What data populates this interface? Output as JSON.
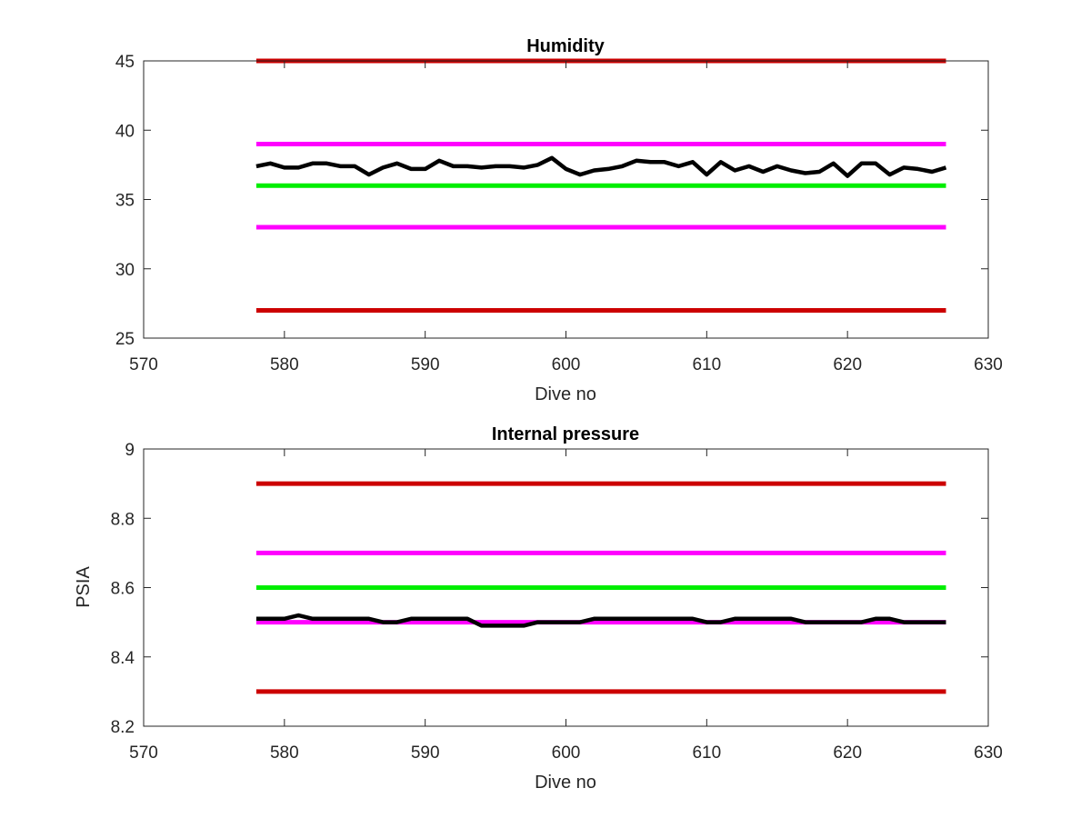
{
  "figure": {
    "background": "#ffffff"
  },
  "chart_data": [
    {
      "type": "line",
      "title": "Humidity",
      "xlabel": "Dive no",
      "ylabel": "",
      "xlim": [
        570,
        630
      ],
      "ylim": [
        25,
        45
      ],
      "xticks": [
        "570",
        "580",
        "590",
        "600",
        "610",
        "620",
        "630"
      ],
      "yticks": [
        "25",
        "30",
        "35",
        "40",
        "45"
      ],
      "grid": false,
      "series": [
        {
          "color": "#cc0000",
          "x": [
            578,
            627
          ],
          "values": [
            45,
            45
          ]
        },
        {
          "color": "#ff00ff",
          "x": [
            578,
            627
          ],
          "values": [
            39,
            39
          ]
        },
        {
          "color": "#00ee00",
          "x": [
            578,
            627
          ],
          "values": [
            36,
            36
          ]
        },
        {
          "color": "#ff00ff",
          "x": [
            578,
            627
          ],
          "values": [
            33,
            33
          ]
        },
        {
          "color": "#cc0000",
          "x": [
            578,
            627
          ],
          "values": [
            27,
            27
          ]
        },
        {
          "color": "#000000",
          "x": [
            578,
            579,
            580,
            581,
            582,
            583,
            584,
            585,
            586,
            587,
            588,
            589,
            590,
            591,
            592,
            593,
            594,
            595,
            596,
            597,
            598,
            599,
            600,
            601,
            602,
            603,
            604,
            605,
            606,
            607,
            608,
            609,
            610,
            611,
            612,
            613,
            614,
            615,
            616,
            617,
            618,
            619,
            620,
            621,
            622,
            623,
            624,
            625,
            626,
            627
          ],
          "values": [
            37.4,
            37.6,
            37.3,
            37.3,
            37.6,
            37.6,
            37.4,
            37.4,
            36.8,
            37.3,
            37.6,
            37.2,
            37.2,
            37.8,
            37.4,
            37.4,
            37.3,
            37.4,
            37.4,
            37.3,
            37.5,
            38.0,
            37.2,
            36.8,
            37.1,
            37.2,
            37.4,
            37.8,
            37.7,
            37.7,
            37.4,
            37.7,
            36.8,
            37.7,
            37.1,
            37.4,
            37.0,
            37.4,
            37.1,
            36.9,
            37.0,
            37.6,
            36.7,
            37.6,
            37.6,
            36.8,
            37.3,
            37.2,
            37.0,
            37.3
          ]
        }
      ]
    },
    {
      "type": "line",
      "title": "Internal pressure",
      "xlabel": "Dive no",
      "ylabel": "PSIA",
      "xlim": [
        570,
        630
      ],
      "ylim": [
        8.2,
        9.0
      ],
      "xticks": [
        "570",
        "580",
        "590",
        "600",
        "610",
        "620",
        "630"
      ],
      "yticks": [
        "8.2",
        "8.4",
        "8.6",
        "8.8",
        "9"
      ],
      "grid": false,
      "series": [
        {
          "color": "#cc0000",
          "x": [
            578,
            627
          ],
          "values": [
            8.9,
            8.9
          ]
        },
        {
          "color": "#ff00ff",
          "x": [
            578,
            627
          ],
          "values": [
            8.7,
            8.7
          ]
        },
        {
          "color": "#00ee00",
          "x": [
            578,
            627
          ],
          "values": [
            8.6,
            8.6
          ]
        },
        {
          "color": "#ff00ff",
          "x": [
            578,
            627
          ],
          "values": [
            8.5,
            8.5
          ]
        },
        {
          "color": "#cc0000",
          "x": [
            578,
            627
          ],
          "values": [
            8.3,
            8.3
          ]
        },
        {
          "color": "#000000",
          "x": [
            578,
            579,
            580,
            581,
            582,
            583,
            584,
            585,
            586,
            587,
            588,
            589,
            590,
            591,
            592,
            593,
            594,
            595,
            596,
            597,
            598,
            599,
            600,
            601,
            602,
            603,
            604,
            605,
            606,
            607,
            608,
            609,
            610,
            611,
            612,
            613,
            614,
            615,
            616,
            617,
            618,
            619,
            620,
            621,
            622,
            623,
            624,
            625,
            626,
            627
          ],
          "values": [
            8.51,
            8.51,
            8.51,
            8.52,
            8.51,
            8.51,
            8.51,
            8.51,
            8.51,
            8.5,
            8.5,
            8.51,
            8.51,
            8.51,
            8.51,
            8.51,
            8.49,
            8.49,
            8.49,
            8.49,
            8.5,
            8.5,
            8.5,
            8.5,
            8.51,
            8.51,
            8.51,
            8.51,
            8.51,
            8.51,
            8.51,
            8.51,
            8.5,
            8.5,
            8.51,
            8.51,
            8.51,
            8.51,
            8.51,
            8.5,
            8.5,
            8.5,
            8.5,
            8.5,
            8.51,
            8.51,
            8.5,
            8.5,
            8.5,
            8.5
          ]
        }
      ]
    }
  ]
}
